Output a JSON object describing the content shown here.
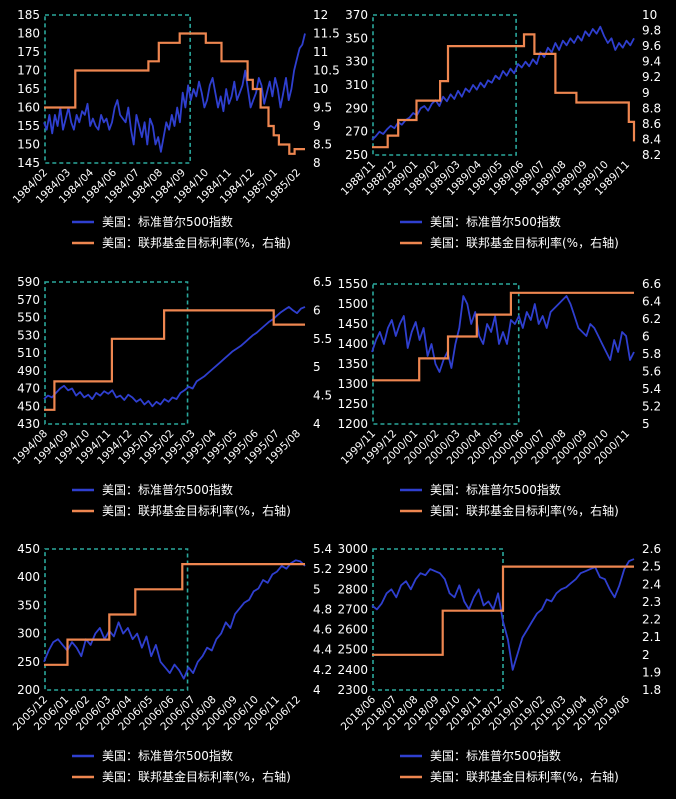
{
  "legend": {
    "sp500": "美国：标准普尔500指数",
    "fed_rate": "美国：联邦基金目标利率(%，右轴)"
  },
  "colors": {
    "sp500": "#2f3fcf",
    "fed_rate": "#ee8650",
    "dashed_box": "#2aa79c",
    "text": "#ffffff",
    "background": "#000000"
  },
  "chart_data": [
    {
      "type": "line",
      "x_ticks": [
        "1984/02",
        "1984/03",
        "1984/04",
        "1984/06",
        "1984/07",
        "1984/08",
        "1984/09",
        "1984/10",
        "1984/11",
        "1984/12",
        "1985/01",
        "1985/02"
      ],
      "left_axis": {
        "ticks": [
          145,
          150,
          155,
          160,
          165,
          170,
          175,
          180,
          185
        ],
        "range": [
          145,
          185
        ]
      },
      "right_axis": {
        "ticks": [
          "8",
          "8.5",
          "9",
          "9.5",
          "10",
          "10.5",
          "11",
          "11.5",
          "12"
        ],
        "range": [
          8,
          12
        ]
      },
      "series": [
        {
          "key": "sp500",
          "axis": "left",
          "values": [
            156,
            154,
            158,
            153,
            158,
            155,
            160,
            154,
            157,
            160,
            156,
            154,
            158,
            156,
            159,
            158,
            161,
            155,
            157,
            155,
            154,
            158,
            156,
            157,
            154,
            156,
            160,
            162,
            158,
            157,
            156,
            160,
            154,
            150,
            158,
            155,
            152,
            156,
            150,
            157,
            155,
            150,
            152,
            148,
            152,
            156,
            154,
            158,
            155,
            160,
            156,
            164,
            160,
            166,
            162,
            165,
            163,
            167,
            164,
            160,
            162,
            166,
            168,
            164,
            160,
            163,
            159,
            165,
            161,
            163,
            167,
            162,
            164,
            166,
            170,
            165,
            160,
            162,
            164,
            168,
            166,
            161,
            164,
            167,
            163,
            168,
            165,
            160,
            164,
            168,
            162,
            165,
            170,
            173,
            176,
            177,
            180
          ]
        },
        {
          "key": "fed_rate",
          "axis": "right",
          "steps": [
            [
              0,
              9.5
            ],
            [
              0.12,
              10.5
            ],
            [
              0.4,
              10.75
            ],
            [
              0.44,
              11.25
            ],
            [
              0.52,
              11.5
            ],
            [
              0.62,
              11.25
            ],
            [
              0.68,
              10.75
            ],
            [
              0.78,
              10.25
            ],
            [
              0.8,
              10.0
            ],
            [
              0.83,
              9.5
            ],
            [
              0.86,
              9.0
            ],
            [
              0.88,
              8.75
            ],
            [
              0.9,
              8.5
            ],
            [
              0.94,
              8.25
            ],
            [
              0.96,
              8.375
            ],
            [
              1.0,
              8.375
            ]
          ]
        }
      ],
      "dashed_box": {
        "x_range": [
          0.0,
          0.56
        ],
        "y_range": [
          0.0,
          1.0
        ]
      }
    },
    {
      "type": "line",
      "x_ticks": [
        "1988/11",
        "1988/12",
        "1989/01",
        "1989/02",
        "1989/03",
        "1989/04",
        "1989/05",
        "1989/06",
        "1989/07",
        "1989/08",
        "1989/09",
        "1989/10",
        "1989/11"
      ],
      "left_axis": {
        "ticks": [
          250,
          270,
          290,
          310,
          330,
          350,
          370
        ],
        "range": [
          250,
          370
        ]
      },
      "right_axis": {
        "ticks": [
          "8.2",
          "8.4",
          "8.6",
          "8.8",
          "9",
          "9.2",
          "9.4",
          "9.6",
          "9.8",
          "10"
        ],
        "range": [
          8.2,
          10
        ]
      },
      "series": [
        {
          "key": "sp500",
          "axis": "left",
          "values": [
            263,
            266,
            270,
            268,
            272,
            275,
            273,
            278,
            276,
            280,
            282,
            286,
            284,
            290,
            292,
            288,
            294,
            297,
            292,
            300,
            296,
            302,
            298,
            305,
            300,
            307,
            304,
            310,
            306,
            312,
            308,
            314,
            312,
            318,
            315,
            322,
            318,
            324,
            320,
            328,
            325,
            330,
            326,
            332,
            328,
            338,
            334,
            342,
            338,
            346,
            340,
            348,
            344,
            350,
            346,
            352,
            348,
            356,
            352,
            358,
            354,
            360,
            352,
            346,
            350,
            340,
            346,
            342,
            348,
            344,
            350
          ]
        },
        {
          "key": "fed_rate",
          "axis": "right",
          "steps": [
            [
              0,
              8.3
            ],
            [
              0.06,
              8.45
            ],
            [
              0.1,
              8.65
            ],
            [
              0.17,
              8.9
            ],
            [
              0.26,
              9.15
            ],
            [
              0.29,
              9.6
            ],
            [
              0.58,
              9.75
            ],
            [
              0.62,
              9.5
            ],
            [
              0.7,
              9.0
            ],
            [
              0.76,
              9.0
            ],
            [
              0.78,
              8.875
            ],
            [
              0.98,
              8.625
            ],
            [
              1.0,
              8.375
            ]
          ]
        }
      ],
      "dashed_box": {
        "x_range": [
          0.0,
          0.55
        ],
        "y_range": [
          0.0,
          1.0
        ]
      }
    },
    {
      "type": "line",
      "x_ticks": [
        "1994/08",
        "1994/09",
        "1994/10",
        "1994/11",
        "1994/12",
        "1995/01",
        "1995/02",
        "1995/03",
        "1995/04",
        "1995/05",
        "1995/06",
        "1995/07",
        "1995/08"
      ],
      "left_axis": {
        "ticks": [
          430,
          450,
          470,
          490,
          510,
          530,
          550,
          570,
          590
        ],
        "range": [
          430,
          590
        ]
      },
      "right_axis": {
        "ticks": [
          "4",
          "4.5",
          "5",
          "5.5",
          "6",
          "6.5"
        ],
        "range": [
          4,
          6.5
        ]
      },
      "series": [
        {
          "key": "sp500",
          "axis": "left",
          "values": [
            458,
            462,
            460,
            465,
            470,
            473,
            468,
            470,
            462,
            466,
            460,
            463,
            458,
            465,
            462,
            467,
            464,
            468,
            460,
            462,
            457,
            463,
            460,
            455,
            458,
            452,
            456,
            450,
            455,
            452,
            458,
            455,
            460,
            458,
            465,
            468,
            472,
            470,
            478,
            481,
            484,
            488,
            492,
            496,
            500,
            504,
            508,
            512,
            515,
            518,
            522,
            526,
            530,
            533,
            537,
            541,
            545,
            548,
            552,
            556,
            559,
            562,
            558,
            555,
            560,
            562
          ]
        },
        {
          "key": "fed_rate",
          "axis": "right",
          "steps": [
            [
              0,
              4.25
            ],
            [
              0.04,
              4.75
            ],
            [
              0.26,
              5.5
            ],
            [
              0.46,
              6.0
            ],
            [
              0.88,
              5.75
            ],
            [
              1.0,
              5.75
            ]
          ]
        }
      ],
      "dashed_box": {
        "x_range": [
          0.0,
          0.55
        ],
        "y_range": [
          0.0,
          1.0
        ]
      }
    },
    {
      "type": "line",
      "x_ticks": [
        "1999/11",
        "1999/12",
        "2000/01",
        "2000/02",
        "2000/03",
        "2000/04",
        "2000/05",
        "2000/06",
        "2000/07",
        "2000/08",
        "2000/09",
        "2000/10",
        "2000/11"
      ],
      "left_axis": {
        "ticks": [
          1200,
          1250,
          1300,
          1350,
          1400,
          1450,
          1500,
          1550
        ],
        "range": [
          1200,
          1550
        ]
      },
      "right_axis": {
        "ticks": [
          "5",
          "5.2",
          "5.4",
          "5.6",
          "5.8",
          "6",
          "6.2",
          "6.4",
          "6.6"
        ],
        "range": [
          5,
          6.6
        ]
      },
      "series": [
        {
          "key": "sp500",
          "axis": "left",
          "values": [
            1380,
            1410,
            1430,
            1400,
            1440,
            1460,
            1420,
            1450,
            1470,
            1390,
            1430,
            1455,
            1410,
            1440,
            1370,
            1400,
            1350,
            1330,
            1360,
            1380,
            1340,
            1400,
            1440,
            1520,
            1500,
            1450,
            1480,
            1420,
            1400,
            1450,
            1430,
            1470,
            1400,
            1430,
            1400,
            1460,
            1450,
            1470,
            1440,
            1480,
            1460,
            1500,
            1450,
            1470,
            1440,
            1480,
            1490,
            1500,
            1510,
            1520,
            1500,
            1470,
            1440,
            1430,
            1420,
            1450,
            1440,
            1420,
            1400,
            1380,
            1360,
            1410,
            1380,
            1430,
            1420,
            1360,
            1380
          ]
        },
        {
          "key": "fed_rate",
          "axis": "right",
          "steps": [
            [
              0,
              5.5
            ],
            [
              0.18,
              5.75
            ],
            [
              0.2,
              5.75
            ],
            [
              0.29,
              6.0
            ],
            [
              0.4,
              6.25
            ],
            [
              0.53,
              6.5
            ],
            [
              1.0,
              6.5
            ]
          ]
        }
      ],
      "dashed_box": {
        "x_range": [
          0.0,
          0.56
        ],
        "y_range": [
          0.0,
          1.0
        ]
      }
    },
    {
      "type": "line",
      "x_ticks": [
        "2005/12",
        "2006/01",
        "2006/02",
        "2006/03",
        "2006/04",
        "2006/05",
        "2006/06",
        "2006/07",
        "2006/08",
        "2006/09",
        "2006/10",
        "2006/11",
        "2006/12"
      ],
      "left_axis": {
        "ticks": [
          200,
          250,
          300,
          350,
          400,
          450
        ],
        "range": [
          200,
          450
        ]
      },
      "right_axis": {
        "ticks": [
          "4",
          "4.2",
          "4.4",
          "4.6",
          "4.8",
          "5",
          "5.2",
          "5.4"
        ],
        "range": [
          4,
          5.4
        ]
      },
      "series": [
        {
          "key": "sp500",
          "axis": "left",
          "values": [
            250,
            270,
            285,
            290,
            280,
            270,
            285,
            275,
            260,
            290,
            280,
            300,
            310,
            290,
            305,
            295,
            320,
            300,
            310,
            290,
            300,
            275,
            295,
            260,
            280,
            250,
            240,
            230,
            245,
            235,
            220,
            240,
            230,
            250,
            260,
            275,
            270,
            290,
            300,
            320,
            310,
            335,
            345,
            355,
            360,
            375,
            380,
            395,
            390,
            405,
            410,
            420,
            415,
            425,
            430,
            428,
            420
          ]
        },
        {
          "key": "fed_rate",
          "axis": "right",
          "steps": [
            [
              0,
              4.25
            ],
            [
              0.09,
              4.5
            ],
            [
              0.25,
              4.75
            ],
            [
              0.35,
              5.0
            ],
            [
              0.53,
              5.25
            ],
            [
              1.0,
              5.25
            ]
          ]
        }
      ],
      "dashed_box": {
        "x_range": [
          0.0,
          0.55
        ],
        "y_range": [
          0.0,
          1.0
        ]
      }
    },
    {
      "type": "line",
      "x_ticks": [
        "2018/06",
        "2018/07",
        "2018/08",
        "2018/09",
        "2018/10",
        "2018/11",
        "2018/12",
        "2019/01",
        "2019/02",
        "2019/03",
        "2019/04",
        "2019/05",
        "2019/06"
      ],
      "left_axis": {
        "ticks": [
          2300,
          2400,
          2500,
          2600,
          2700,
          2800,
          2900,
          3000
        ],
        "range": [
          2300,
          3000
        ]
      },
      "right_axis": {
        "ticks": [
          "1.8",
          "1.9",
          "2",
          "2.1",
          "2.2",
          "2.3",
          "2.4",
          "2.5",
          "2.6"
        ],
        "range": [
          1.8,
          2.6
        ]
      },
      "series": [
        {
          "key": "sp500",
          "axis": "left",
          "values": [
            2720,
            2700,
            2730,
            2780,
            2800,
            2760,
            2820,
            2840,
            2800,
            2850,
            2880,
            2870,
            2900,
            2890,
            2880,
            2850,
            2780,
            2760,
            2820,
            2740,
            2700,
            2760,
            2800,
            2720,
            2740,
            2700,
            2780,
            2640,
            2550,
            2400,
            2480,
            2560,
            2600,
            2640,
            2680,
            2700,
            2750,
            2740,
            2780,
            2800,
            2810,
            2830,
            2850,
            2880,
            2890,
            2900,
            2910,
            2860,
            2850,
            2800,
            2760,
            2820,
            2900,
            2940,
            2950
          ]
        },
        {
          "key": "fed_rate",
          "axis": "right",
          "steps": [
            [
              0,
              2.0
            ],
            [
              0.27,
              2.25
            ],
            [
              0.5,
              2.5
            ],
            [
              1.0,
              2.5
            ]
          ]
        }
      ],
      "dashed_box": {
        "x_range": [
          0.0,
          0.5
        ],
        "y_range": [
          0.0,
          1.0
        ]
      }
    }
  ]
}
